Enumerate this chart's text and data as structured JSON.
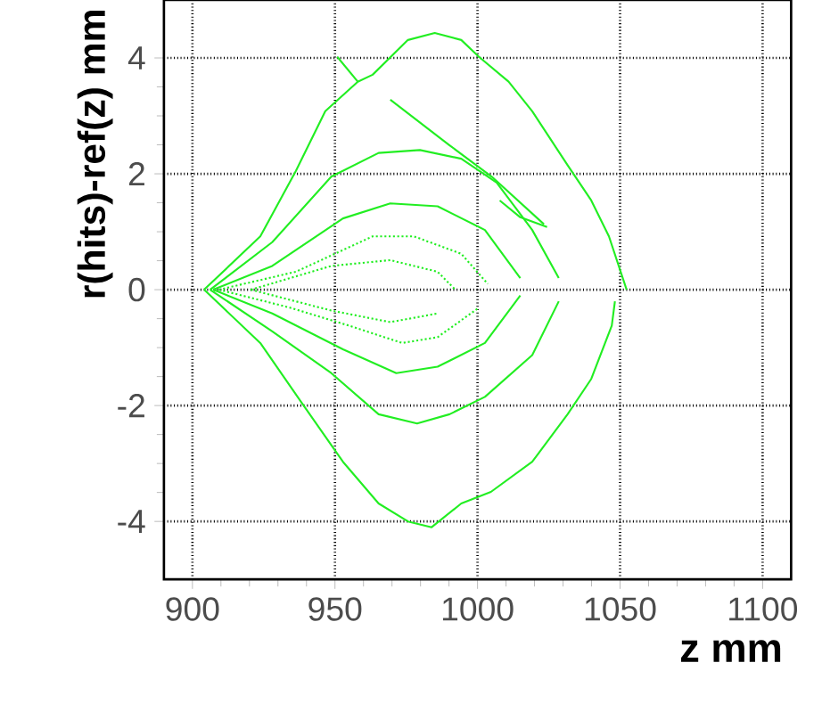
{
  "chart_data": {
    "type": "line",
    "xlabel": "z mm",
    "ylabel": "r(hits)-ref(z) mm",
    "xlim": [
      890,
      1110
    ],
    "ylim": [
      -5,
      5
    ],
    "xticks": [
      900,
      950,
      1000,
      1050,
      1100
    ],
    "yticks": [
      -4,
      -2,
      0,
      2,
      4
    ],
    "grid": true,
    "marker": "none",
    "line_style": "solid",
    "series": [
      {
        "color": "#22ee22",
        "x": [
          904.1,
          923.8,
          936.3,
          946.6,
          958,
          963.2,
          975.6,
          985,
          994.3,
          1000.5,
          1010.9,
          1019.2,
          1031.6,
          1039.9,
          1046.1,
          1052.3
        ],
        "values": [
          0,
          0.92,
          2.05,
          3.08,
          3.59,
          3.71,
          4.31,
          4.43,
          4.31,
          4.02,
          3.59,
          3.08,
          2.15,
          1.54,
          0.92,
          0
        ]
      },
      {
        "color": "#22ee22",
        "x": [
          950.8,
          958
        ],
        "values": [
          4.02,
          3.59
        ]
      },
      {
        "color": "#22ee22",
        "x": [
          904.1,
          923.8,
          938.3,
          952.8,
          965.3,
          975.6,
          983.9,
          994.3,
          1004.7,
          1019.2,
          1031.6,
          1039.9,
          1047.1,
          1048.2
        ],
        "values": [
          0,
          -0.92,
          -1.95,
          -2.97,
          -3.69,
          -4.0,
          -4.1,
          -3.69,
          -3.49,
          -2.97,
          -2.15,
          -1.54,
          -0.62,
          -0.2
        ]
      },
      {
        "color": "#22ee22",
        "x": [
          969.4,
          990,
          1005,
          1023.3
        ],
        "values": [
          3.28,
          2.5,
          1.95,
          1.13
        ]
      },
      {
        "color": "#22ee22",
        "x": [
          1007.8,
          1015,
          1024.4
        ],
        "values": [
          1.54,
          1.25,
          1.08
        ]
      },
      {
        "color": "#22ee22",
        "x": [
          906.2,
          928,
          948.7,
          965.3,
          979.8,
          994.3,
          1006.7,
          1019.2,
          1028.5
        ],
        "values": [
          0,
          0.82,
          1.95,
          2.36,
          2.41,
          2.26,
          1.85,
          1.03,
          0.2
        ]
      },
      {
        "color": "#22ee22",
        "x": [
          906.2,
          928,
          948.7,
          965.3,
          978.8,
          990.2,
          1002.6,
          1019.2,
          1028.5
        ],
        "values": [
          0,
          -0.72,
          -1.44,
          -2.15,
          -2.31,
          -2.15,
          -1.85,
          -1.13,
          -0.2
        ]
      },
      {
        "color": "#22ee22",
        "x": [
          907.3,
          928,
          952.8,
          969.4,
          986,
          1002.6,
          1015
        ],
        "values": [
          0,
          0.41,
          1.23,
          1.49,
          1.44,
          1.03,
          0.2
        ]
      },
      {
        "color": "#22ee22",
        "x": [
          907.3,
          928,
          952.8,
          971.5,
          986,
          1002.6,
          1015
        ],
        "values": [
          0,
          -0.41,
          -1.03,
          -1.44,
          -1.33,
          -0.92,
          -0.1
        ]
      },
      {
        "color": "#22ee22",
        "line_style": "dotted",
        "x": [
          909.3,
          936.3,
          963.2,
          977.7,
          994.3,
          1003.6
        ],
        "values": [
          0,
          0.31,
          0.92,
          0.92,
          0.62,
          0.1
        ]
      },
      {
        "color": "#22ee22",
        "line_style": "dotted",
        "x": [
          909.3,
          934.2,
          954.9,
          973.6,
          986,
          1000.5
        ],
        "values": [
          0,
          -0.31,
          -0.62,
          -0.92,
          -0.82,
          -0.31
        ]
      },
      {
        "color": "#22ee22",
        "line_style": "dotted",
        "x": [
          920.5,
          948.7,
          969.4,
          986,
          992.2
        ],
        "values": [
          0,
          0.41,
          0.51,
          0.31,
          0
        ]
      },
      {
        "color": "#22ee22",
        "line_style": "dotted",
        "x": [
          920.5,
          948.7,
          969.4,
          986
        ],
        "values": [
          0,
          -0.36,
          -0.56,
          -0.41
        ]
      }
    ]
  }
}
